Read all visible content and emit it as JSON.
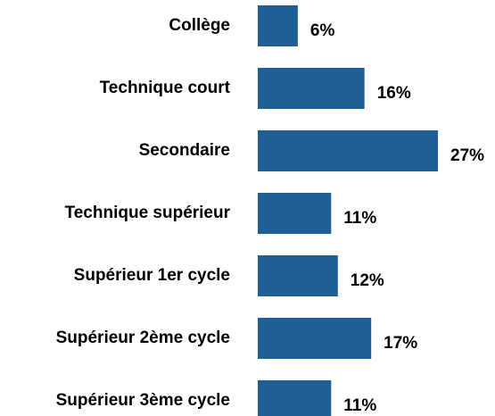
{
  "chart_data": {
    "type": "bar",
    "orientation": "horizontal",
    "categories": [
      "Collège",
      "Technique court",
      "Secondaire",
      "Technique supérieur",
      "Supérieur 1er cycle",
      "Supérieur 2ème cycle",
      "Supérieur 3ème cycle"
    ],
    "values": [
      6,
      16,
      27,
      11,
      12,
      17,
      11
    ],
    "value_labels": [
      "6%",
      "16%",
      "27%",
      "11%",
      "12%",
      "17%",
      "11%"
    ],
    "color": "#1f5e96"
  }
}
